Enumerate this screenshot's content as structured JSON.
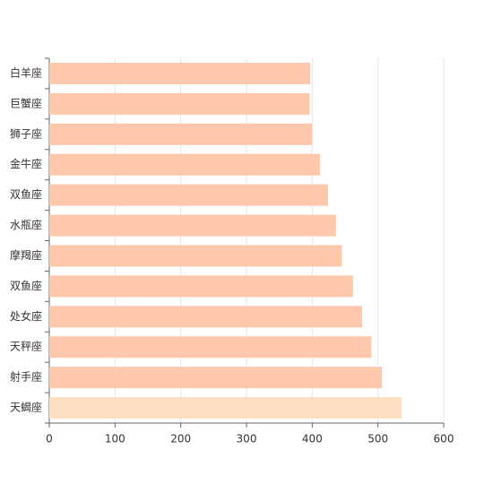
{
  "chart_data": {
    "type": "hbar",
    "categories": [
      "白羊座",
      "巨蟹座",
      "狮子座",
      "金牛座",
      "双鱼座",
      "水瓶座",
      "摩羯座",
      "双鱼座",
      "处女座",
      "天秤座",
      "射手座",
      "天蝎座"
    ],
    "values": [
      397,
      396,
      400,
      412,
      424,
      436,
      445,
      462,
      476,
      490,
      506,
      536
    ],
    "colors": [
      "#fdc8ab",
      "#fdc8ab",
      "#fdc8ab",
      "#fdc8ab",
      "#fdc8ab",
      "#fdc8ab",
      "#fdc8ab",
      "#fdc8ab",
      "#fdc8ab",
      "#fdc8ab",
      "#fdc8ab",
      "#fde0c2"
    ],
    "xlim": [
      0,
      600
    ],
    "xticks": [
      0,
      100,
      200,
      300,
      400,
      500,
      600
    ],
    "grid": true
  }
}
